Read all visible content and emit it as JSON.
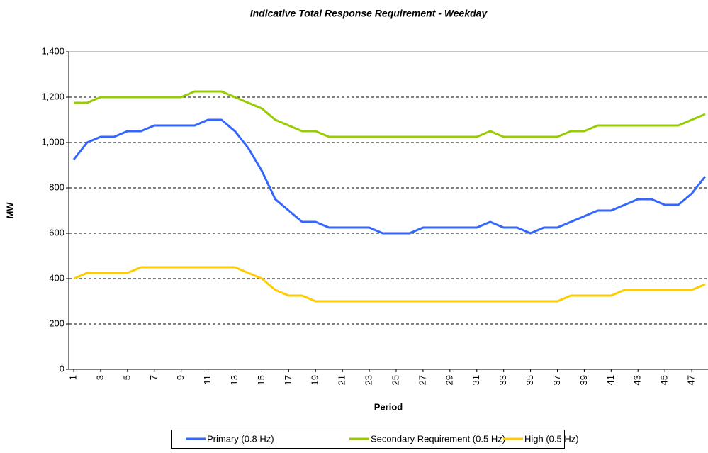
{
  "chart_data": {
    "type": "line",
    "title": "Indicative Total Response Requirement - Weekday",
    "x_label": "Period",
    "y_label": "MW",
    "x": [
      1,
      2,
      3,
      4,
      5,
      6,
      7,
      8,
      9,
      10,
      11,
      12,
      13,
      14,
      15,
      16,
      17,
      18,
      19,
      20,
      21,
      22,
      23,
      24,
      25,
      26,
      27,
      28,
      29,
      30,
      31,
      32,
      33,
      34,
      35,
      36,
      37,
      38,
      39,
      40,
      41,
      42,
      43,
      44,
      45,
      46,
      47,
      48
    ],
    "xlim": [
      0.63,
      48.21
    ],
    "xticks": [
      1,
      3,
      5,
      7,
      9,
      11,
      13,
      15,
      17,
      19,
      21,
      23,
      25,
      27,
      29,
      31,
      33,
      35,
      37,
      39,
      41,
      43,
      45,
      47
    ],
    "ylim": [
      0,
      1400
    ],
    "yticks": [
      0,
      200,
      400,
      600,
      800,
      {
        "value": 1000,
        "label": "1,000"
      },
      {
        "value": 1200,
        "label": "1,200"
      },
      {
        "value": 1400,
        "label": "1,400"
      }
    ],
    "grid": true,
    "legend": "bottom",
    "series": [
      {
        "name": "Primary (0.8 Hz)",
        "color": "#3366ff",
        "values": [
          925,
          1000,
          1025,
          1025,
          1050,
          1050,
          1075,
          1075,
          1075,
          1075,
          1100,
          1100,
          1050,
          975,
          875,
          750,
          700,
          650,
          650,
          625,
          625,
          625,
          625,
          600,
          600,
          600,
          625,
          625,
          625,
          625,
          625,
          650,
          625,
          625,
          600,
          625,
          625,
          650,
          675,
          700,
          700,
          725,
          750,
          750,
          725,
          725,
          775,
          850
        ]
      },
      {
        "name": "Secondary Requirement (0.5 Hz)",
        "color": "#99cc00",
        "values": [
          1175,
          1175,
          1200,
          1200,
          1200,
          1200,
          1200,
          1200,
          1200,
          1225,
          1225,
          1225,
          1200,
          1175,
          1150,
          1100,
          1075,
          1050,
          1050,
          1025,
          1025,
          1025,
          1025,
          1025,
          1025,
          1025,
          1025,
          1025,
          1025,
          1025,
          1025,
          1050,
          1025,
          1025,
          1025,
          1025,
          1025,
          1050,
          1050,
          1075,
          1075,
          1075,
          1075,
          1075,
          1075,
          1075,
          1100,
          1125
        ]
      },
      {
        "name": "High (0.5 Hz)",
        "color": "#ffcc00",
        "values": [
          400,
          425,
          425,
          425,
          425,
          450,
          450,
          450,
          450,
          450,
          450,
          450,
          450,
          425,
          400,
          350,
          325,
          325,
          300,
          300,
          300,
          300,
          300,
          300,
          300,
          300,
          300,
          300,
          300,
          300,
          300,
          300,
          300,
          300,
          300,
          300,
          300,
          325,
          325,
          325,
          325,
          350,
          350,
          350,
          350,
          350,
          350,
          375
        ]
      }
    ]
  }
}
